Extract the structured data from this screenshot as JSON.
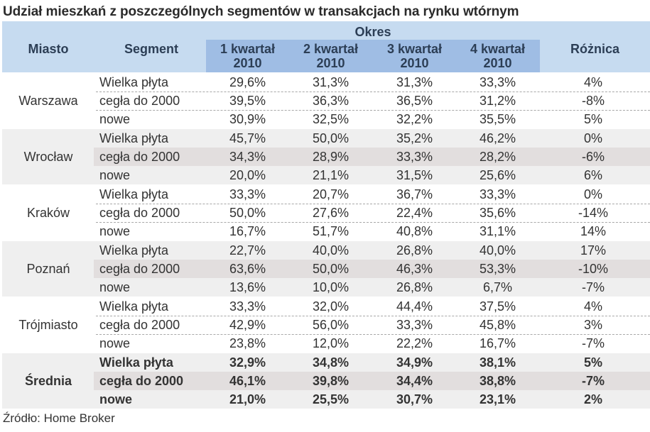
{
  "title": "Udział mieszkań z poszczególnych segmentów w transakcjach na rynku wtórnym",
  "header": {
    "miasto": "Miasto",
    "segment": "Segment",
    "okres": "Okres",
    "quarters": [
      "1 kwartał\n2010",
      "2 kwartał\n2010",
      "3 kwartał\n2010",
      "4 kwartał\n2010"
    ],
    "quarter_lines": [
      {
        "l1": "1 kwartał",
        "l2": "2010"
      },
      {
        "l1": "2 kwartał",
        "l2": "2010"
      },
      {
        "l1": "3 kwartał",
        "l2": "2010"
      },
      {
        "l1": "4 kwartał",
        "l2": "2010"
      }
    ],
    "roznica": "Różnica"
  },
  "groups": [
    {
      "city": "Warszawa",
      "rows": [
        {
          "segment": "Wielka płyta",
          "q": [
            "29,6%",
            "31,3%",
            "31,3%",
            "33,3%"
          ],
          "diff": "4%"
        },
        {
          "segment": "cegła do 2000",
          "q": [
            "39,5%",
            "36,3%",
            "36,5%",
            "31,2%"
          ],
          "diff": "-8%"
        },
        {
          "segment": "nowe",
          "q": [
            "30,9%",
            "32,5%",
            "32,2%",
            "35,5%"
          ],
          "diff": "5%"
        }
      ]
    },
    {
      "city": "Wrocław",
      "rows": [
        {
          "segment": "Wielka płyta",
          "q": [
            "45,7%",
            "50,0%",
            "35,2%",
            "46,2%"
          ],
          "diff": "0%"
        },
        {
          "segment": "cegła do 2000",
          "q": [
            "34,3%",
            "28,9%",
            "33,3%",
            "28,2%"
          ],
          "diff": "-6%"
        },
        {
          "segment": "nowe",
          "q": [
            "20,0%",
            "21,1%",
            "31,5%",
            "25,6%"
          ],
          "diff": "6%"
        }
      ]
    },
    {
      "city": "Kraków",
      "rows": [
        {
          "segment": "Wielka płyta",
          "q": [
            "33,3%",
            "20,7%",
            "36,7%",
            "33,3%"
          ],
          "diff": "0%"
        },
        {
          "segment": "cegła do 2000",
          "q": [
            "50,0%",
            "27,6%",
            "22,4%",
            "35,6%"
          ],
          "diff": "-14%"
        },
        {
          "segment": "nowe",
          "q": [
            "16,7%",
            "51,7%",
            "40,8%",
            "31,1%"
          ],
          "diff": "14%"
        }
      ]
    },
    {
      "city": "Poznań",
      "rows": [
        {
          "segment": "Wielka płyta",
          "q": [
            "22,7%",
            "40,0%",
            "26,8%",
            "40,0%"
          ],
          "diff": "17%"
        },
        {
          "segment": "cegła do 2000",
          "q": [
            "63,6%",
            "50,0%",
            "46,3%",
            "53,3%"
          ],
          "diff": "-10%"
        },
        {
          "segment": "nowe",
          "q": [
            "13,6%",
            "10,0%",
            "26,8%",
            "6,7%"
          ],
          "diff": "-7%"
        }
      ]
    },
    {
      "city": "Trójmiasto",
      "rows": [
        {
          "segment": "Wielka płyta",
          "q": [
            "33,3%",
            "32,0%",
            "44,4%",
            "37,5%"
          ],
          "diff": "4%"
        },
        {
          "segment": "cegła do 2000",
          "q": [
            "42,9%",
            "56,0%",
            "33,3%",
            "45,8%"
          ],
          "diff": "3%"
        },
        {
          "segment": "nowe",
          "q": [
            "23,8%",
            "12,0%",
            "22,2%",
            "16,7%"
          ],
          "diff": "-7%"
        }
      ]
    },
    {
      "city": "Średnia",
      "rows": [
        {
          "segment": "Wielka płyta",
          "q": [
            "32,9%",
            "34,8%",
            "34,9%",
            "38,1%"
          ],
          "diff": "5%"
        },
        {
          "segment": "cegła do 2000",
          "q": [
            "46,1%",
            "39,8%",
            "34,4%",
            "38,8%"
          ],
          "diff": "-7%"
        },
        {
          "segment": "nowe",
          "q": [
            "21,0%",
            "25,5%",
            "30,7%",
            "23,1%"
          ],
          "diff": "2%"
        }
      ]
    }
  ],
  "source": "Źródło: Home Broker",
  "colors": {
    "header_bg": "#c6dbf0",
    "quarter_bg": "#9fbde4",
    "header_text": "#2c3e55",
    "gray_group_bg": "#efefef",
    "gray_mid_row_bg": "#e2dede"
  }
}
